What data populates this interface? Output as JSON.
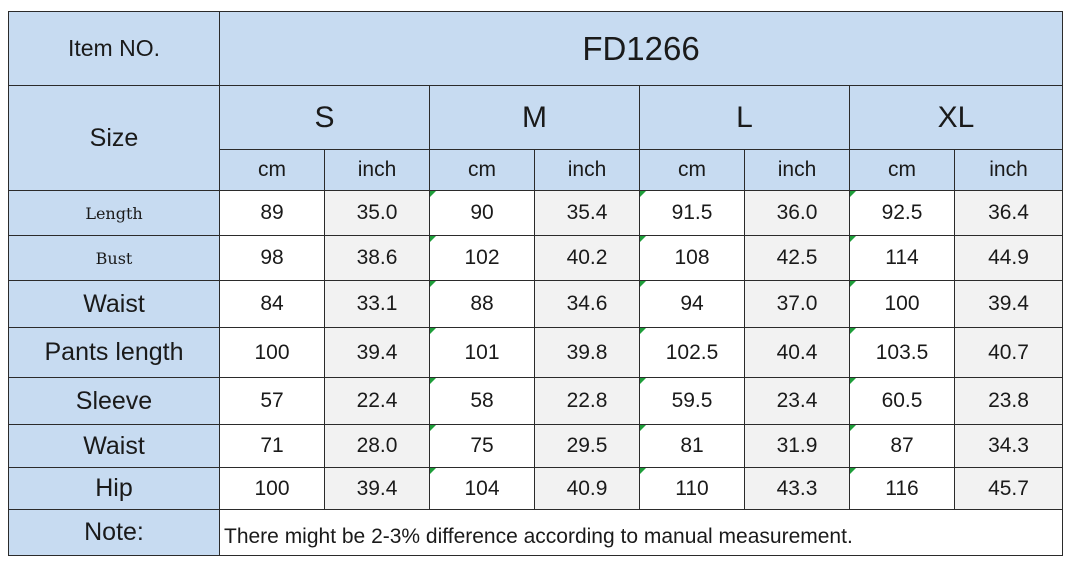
{
  "header": {
    "item_label": "Item NO.",
    "item_value": "FD1266",
    "size_label": "Size",
    "sizes": [
      "S",
      "M",
      "L",
      "XL"
    ],
    "units": [
      "cm",
      "inch",
      "cm",
      "inch",
      "cm",
      "inch",
      "cm",
      "inch"
    ]
  },
  "rows": [
    {
      "label": "Length",
      "values": [
        "89",
        "35.0",
        "90",
        "35.4",
        "91.5",
        "36.0",
        "92.5",
        "36.4"
      ]
    },
    {
      "label": "Bust",
      "values": [
        "98",
        "38.6",
        "102",
        "40.2",
        "108",
        "42.5",
        "114",
        "44.9"
      ]
    },
    {
      "label": "Waist",
      "values": [
        "84",
        "33.1",
        "88",
        "34.6",
        "94",
        "37.0",
        "100",
        "39.4"
      ]
    },
    {
      "label": "Pants length",
      "values": [
        "100",
        "39.4",
        "101",
        "39.8",
        "102.5",
        "40.4",
        "103.5",
        "40.7"
      ]
    },
    {
      "label": "Sleeve",
      "values": [
        "57",
        "22.4",
        "58",
        "22.8",
        "59.5",
        "23.4",
        "60.5",
        "23.8"
      ]
    },
    {
      "label": "Waist",
      "values": [
        "71",
        "28.0",
        "75",
        "29.5",
        "81",
        "31.9",
        "87",
        "34.3"
      ]
    },
    {
      "label": "Hip",
      "values": [
        "100",
        "39.4",
        "104",
        "40.9",
        "110",
        "43.3",
        "116",
        "45.7"
      ]
    }
  ],
  "note": {
    "label": "Note:",
    "text": "There might be 2-3% difference according to manual measurement."
  },
  "colors": {
    "header_fill": "#c7dbf1",
    "alt_fill": "#f2f2f2",
    "corner_mark": "#1e9e3a"
  }
}
